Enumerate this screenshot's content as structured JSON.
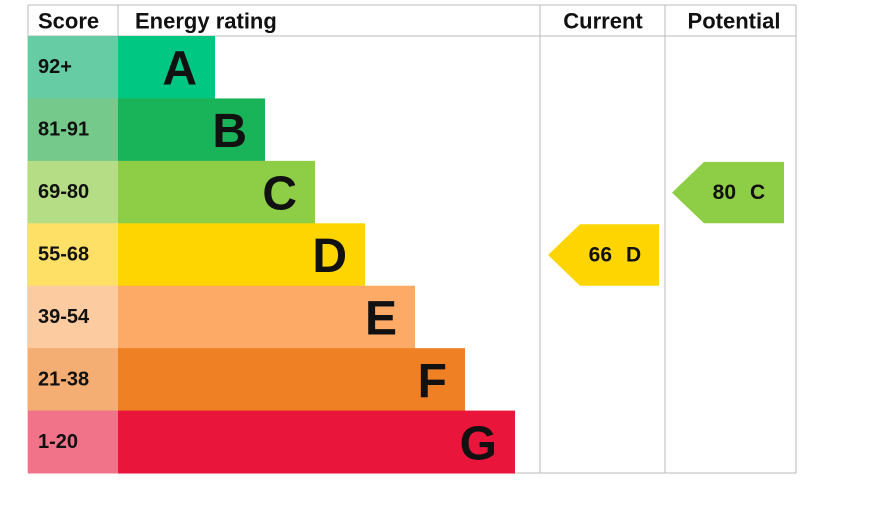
{
  "header": {
    "score": "Score",
    "rating": "Energy rating",
    "current": "Current",
    "potential": "Potential"
  },
  "bands": [
    {
      "range": "92+",
      "letter": "A",
      "color": "#00c781",
      "score_color": "#66cca4"
    },
    {
      "range": "81-91",
      "letter": "B",
      "color": "#19b459",
      "score_color": "#75c98b"
    },
    {
      "range": "69-80",
      "letter": "C",
      "color": "#8dce46",
      "score_color": "#b4dd86"
    },
    {
      "range": "55-68",
      "letter": "D",
      "color": "#ffd500",
      "score_color": "#ffe066"
    },
    {
      "range": "39-54",
      "letter": "E",
      "color": "#fcaa65",
      "score_color": "#fccba0"
    },
    {
      "range": "21-38",
      "letter": "F",
      "color": "#ef8023",
      "score_color": "#f4ad72"
    },
    {
      "range": "1-20",
      "letter": "G",
      "color": "#e9153b",
      "score_color": "#f0738a"
    }
  ],
  "current": {
    "score": 66,
    "letter": "D"
  },
  "potential": {
    "score": 80,
    "letter": "C"
  }
}
